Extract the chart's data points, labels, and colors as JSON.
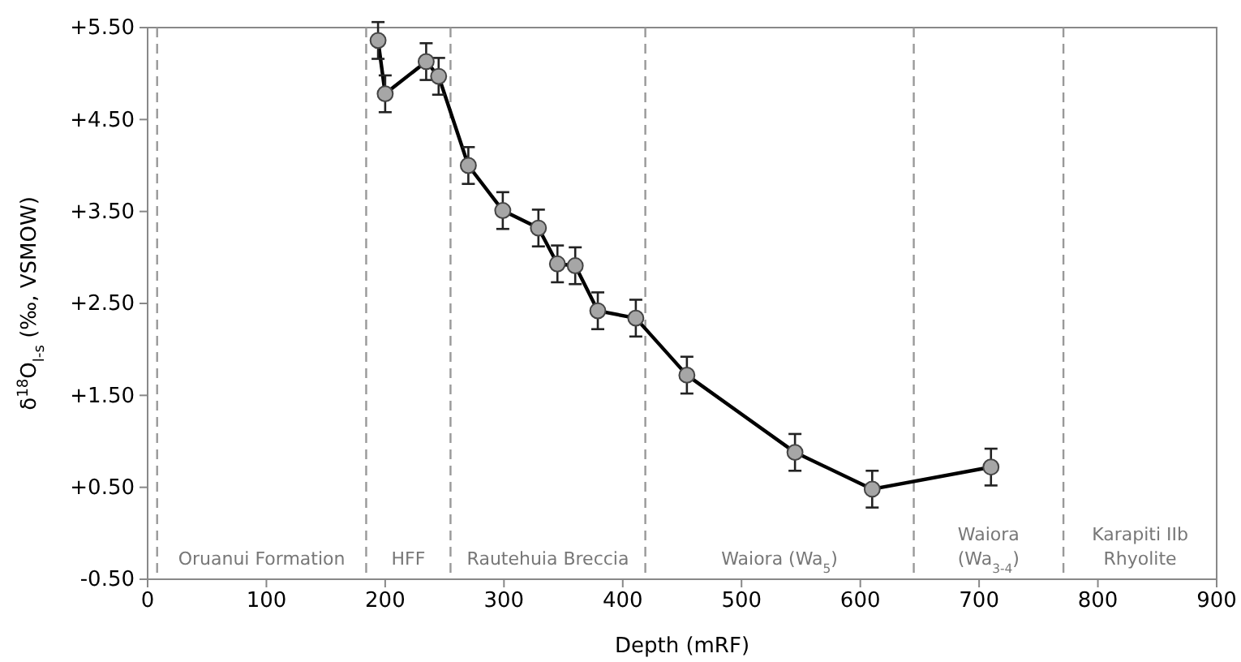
{
  "chart_data": {
    "type": "line",
    "xlabel": "Depth (mRF)",
    "ylabel": "δ$^{18}$O$_{l-s}$ (‰, VSMOW)",
    "x": [
      194,
      200,
      234.5,
      245,
      270,
      299,
      329,
      345,
      360,
      379,
      411,
      454,
      545,
      610,
      710
    ],
    "series": [
      {
        "color": "#000000",
        "values": [
          5.36,
          4.78,
          5.13,
          4.97,
          4.0,
          3.51,
          3.32,
          2.93,
          2.91,
          2.42,
          2.34,
          1.72,
          0.88,
          0.48,
          0.72
        ],
        "errors": [
          0.2,
          0.2,
          0.2,
          0.2,
          0.2,
          0.2,
          0.2,
          0.2,
          0.2,
          0.2,
          0.2,
          0.2,
          0.2,
          0.2,
          0.2
        ]
      }
    ],
    "marker": "circle",
    "line_style": "solid",
    "grid": false,
    "xlim": [
      0,
      900
    ],
    "xticks": [
      0,
      100,
      200,
      300,
      400,
      500,
      600,
      700,
      800,
      900
    ],
    "ylim": [
      -0.5,
      5.5
    ],
    "yticks": [
      {
        "value": -0.5,
        "label": "-0.50"
      },
      {
        "value": 0.5,
        "label": "+0.50"
      },
      {
        "value": 1.5,
        "label": "+1.50"
      },
      {
        "value": 2.5,
        "label": "+2.50"
      },
      {
        "value": 3.5,
        "label": "+3.50"
      },
      {
        "value": 4.5,
        "label": "+4.50"
      },
      {
        "value": 5.5,
        "label": "+5.50"
      }
    ],
    "ref_lines": [
      {
        "axis": "x",
        "value": 8,
        "line_style": "dashed",
        "color": "#999999"
      },
      {
        "axis": "x",
        "value": 184,
        "line_style": "dashed",
        "color": "#999999"
      },
      {
        "axis": "x",
        "value": 255,
        "line_style": "dashed",
        "color": "#999999"
      },
      {
        "axis": "x",
        "value": 419,
        "line_style": "dashed",
        "color": "#999999"
      },
      {
        "axis": "x",
        "value": 645,
        "line_style": "dashed",
        "color": "#999999"
      },
      {
        "axis": "x",
        "value": 771,
        "line_style": "dashed",
        "color": "#999999"
      }
    ],
    "annotations": [
      "Oruanui Formation",
      "HFF",
      "Rautehuia Breccia",
      "Waiora (Wa$_{5}$)",
      "Waiora\n(Wa$_{3-4}$)",
      "Karapiti IIb\nRhyolite"
    ]
  }
}
